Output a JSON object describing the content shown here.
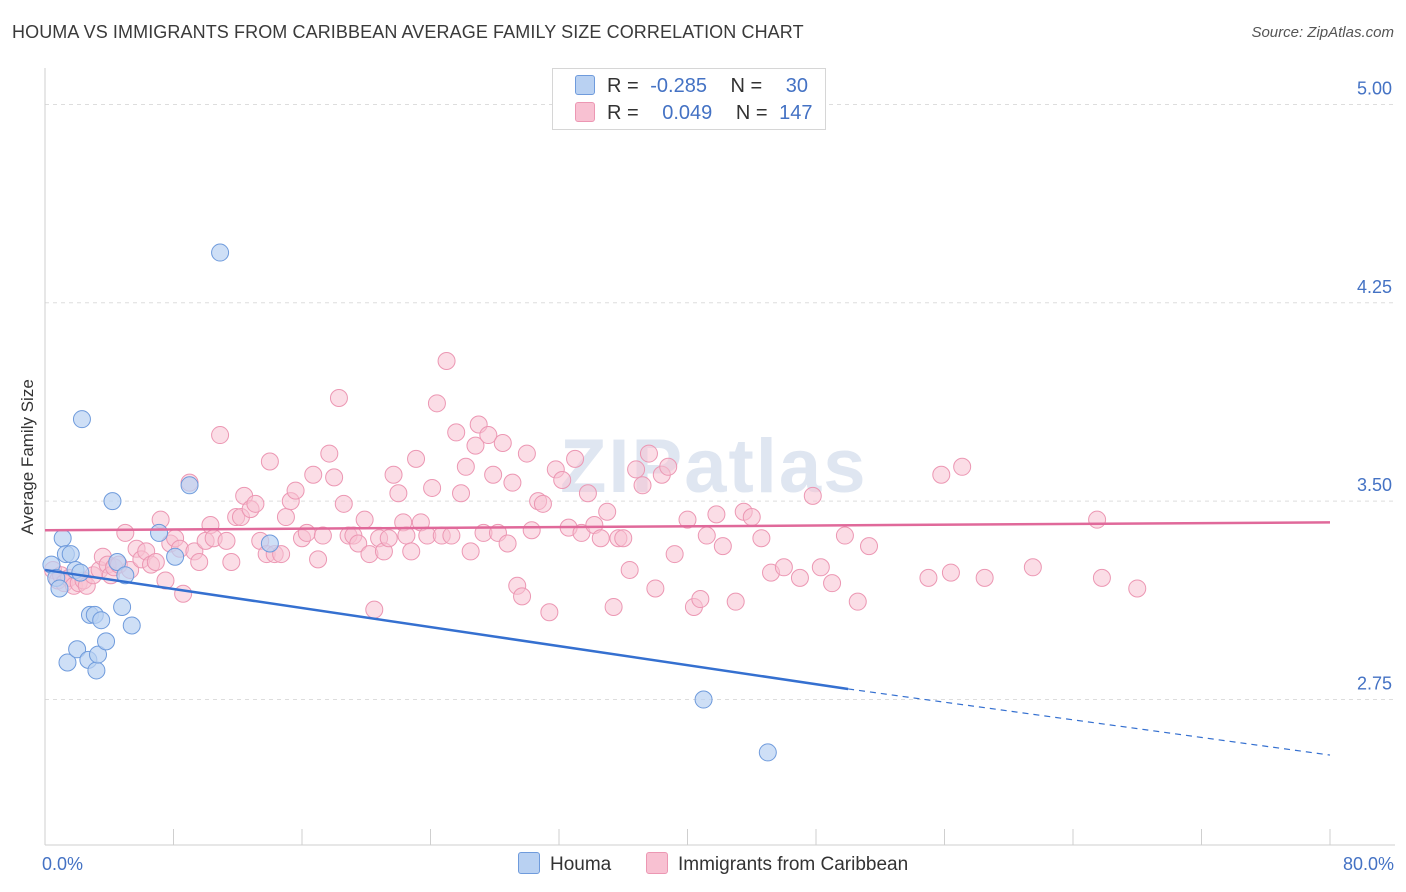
{
  "header": {
    "title": "HOUMA VS IMMIGRANTS FROM CARIBBEAN AVERAGE FAMILY SIZE CORRELATION CHART",
    "source": "Source: ZipAtlas.com"
  },
  "legend_top": {
    "houma": {
      "r_label": "R =",
      "r_value": "-0.285",
      "n_label": "N =",
      "n_value": "30"
    },
    "caribbean": {
      "r_label": "R =",
      "r_value": "0.049",
      "n_label": "N =",
      "n_value": "147"
    }
  },
  "legend_bottom": {
    "houma": "Houma",
    "caribbean": "Immigrants from Caribbean"
  },
  "watermark": "ZIPatlas",
  "colors": {
    "houma_fill": "#b9d1f2",
    "houma_stroke": "#6f9bdc",
    "houma_line": "#3570d0",
    "carib_fill": "#f8c1d2",
    "carib_stroke": "#ec97b3",
    "carib_line": "#e0699a",
    "axis_text": "#4472c4",
    "grid": "#dddddd"
  },
  "chart_data": {
    "type": "scatter",
    "ylabel": "Average Family Size",
    "xlim": [
      0,
      80
    ],
    "ylim": [
      2.2,
      5.1
    ],
    "x_tick_labels": [
      "0.0%",
      "80.0%"
    ],
    "y_ticks": [
      5.0,
      4.25,
      3.5,
      2.75
    ],
    "y_tick_labels": [
      "5.00",
      "4.25",
      "3.50",
      "2.75"
    ],
    "grid": "horizontal dashed",
    "series": [
      {
        "name": "Houma",
        "trend": {
          "x0": 0,
          "y0": 3.24,
          "x1": 50,
          "y1": 2.79,
          "dashed_to_x": 80,
          "dashed_to_y": 2.54
        },
        "points": [
          [
            0.4,
            3.26
          ],
          [
            0.7,
            3.21
          ],
          [
            0.9,
            3.17
          ],
          [
            1.1,
            3.36
          ],
          [
            1.3,
            3.3
          ],
          [
            1.6,
            3.3
          ],
          [
            1.9,
            3.24
          ],
          [
            1.4,
            2.89
          ],
          [
            2.0,
            2.94
          ],
          [
            2.2,
            3.23
          ],
          [
            2.3,
            3.81
          ],
          [
            2.7,
            2.9
          ],
          [
            2.8,
            3.07
          ],
          [
            3.1,
            3.07
          ],
          [
            3.2,
            2.86
          ],
          [
            3.3,
            2.92
          ],
          [
            3.5,
            3.05
          ],
          [
            3.8,
            2.97
          ],
          [
            4.2,
            3.5
          ],
          [
            4.5,
            3.27
          ],
          [
            4.8,
            3.1
          ],
          [
            5.0,
            3.22
          ],
          [
            5.4,
            3.03
          ],
          [
            7.1,
            3.38
          ],
          [
            8.1,
            3.29
          ],
          [
            9.0,
            3.56
          ],
          [
            10.9,
            4.44
          ],
          [
            14.0,
            3.34
          ],
          [
            41.0,
            2.75
          ],
          [
            45.0,
            2.55
          ]
        ]
      },
      {
        "name": "Immigrants from Caribbean",
        "trend": {
          "x0": 0,
          "y0": 3.39,
          "x1": 80,
          "y1": 3.42
        },
        "points": [
          [
            0.5,
            3.24
          ],
          [
            0.8,
            3.2
          ],
          [
            1.0,
            3.22
          ],
          [
            1.2,
            3.19
          ],
          [
            1.5,
            3.21
          ],
          [
            1.8,
            3.18
          ],
          [
            2.1,
            3.19
          ],
          [
            2.4,
            3.2
          ],
          [
            2.6,
            3.18
          ],
          [
            3.0,
            3.22
          ],
          [
            3.4,
            3.24
          ],
          [
            3.6,
            3.29
          ],
          [
            3.9,
            3.26
          ],
          [
            4.1,
            3.22
          ],
          [
            4.3,
            3.25
          ],
          [
            4.6,
            3.26
          ],
          [
            5.0,
            3.38
          ],
          [
            5.3,
            3.24
          ],
          [
            5.7,
            3.32
          ],
          [
            6.0,
            3.28
          ],
          [
            6.3,
            3.31
          ],
          [
            6.6,
            3.26
          ],
          [
            6.9,
            3.27
          ],
          [
            7.2,
            3.43
          ],
          [
            7.5,
            3.2
          ],
          [
            7.8,
            3.34
          ],
          [
            8.1,
            3.36
          ],
          [
            8.4,
            3.32
          ],
          [
            8.6,
            3.15
          ],
          [
            9.0,
            3.57
          ],
          [
            9.3,
            3.31
          ],
          [
            9.6,
            3.27
          ],
          [
            10.0,
            3.35
          ],
          [
            10.3,
            3.41
          ],
          [
            10.5,
            3.36
          ],
          [
            10.9,
            3.75
          ],
          [
            11.3,
            3.35
          ],
          [
            11.6,
            3.27
          ],
          [
            11.9,
            3.44
          ],
          [
            12.2,
            3.44
          ],
          [
            12.4,
            3.52
          ],
          [
            12.8,
            3.47
          ],
          [
            13.1,
            3.49
          ],
          [
            13.4,
            3.35
          ],
          [
            13.8,
            3.3
          ],
          [
            14.0,
            3.65
          ],
          [
            14.3,
            3.3
          ],
          [
            14.7,
            3.3
          ],
          [
            15.0,
            3.44
          ],
          [
            15.3,
            3.5
          ],
          [
            15.6,
            3.54
          ],
          [
            16.0,
            3.36
          ],
          [
            16.3,
            3.38
          ],
          [
            16.7,
            3.6
          ],
          [
            17.0,
            3.28
          ],
          [
            17.3,
            3.37
          ],
          [
            17.7,
            3.68
          ],
          [
            18.0,
            3.59
          ],
          [
            18.3,
            3.89
          ],
          [
            18.6,
            3.49
          ],
          [
            18.9,
            3.37
          ],
          [
            19.2,
            3.37
          ],
          [
            19.5,
            3.34
          ],
          [
            19.9,
            3.43
          ],
          [
            20.2,
            3.3
          ],
          [
            20.5,
            3.09
          ],
          [
            20.8,
            3.36
          ],
          [
            21.1,
            3.31
          ],
          [
            21.4,
            3.36
          ],
          [
            21.7,
            3.6
          ],
          [
            22.0,
            3.53
          ],
          [
            22.3,
            3.42
          ],
          [
            22.5,
            3.37
          ],
          [
            22.8,
            3.31
          ],
          [
            23.1,
            3.66
          ],
          [
            23.4,
            3.42
          ],
          [
            23.8,
            3.37
          ],
          [
            24.1,
            3.55
          ],
          [
            24.4,
            3.87
          ],
          [
            24.7,
            3.37
          ],
          [
            25.0,
            4.03
          ],
          [
            25.3,
            3.37
          ],
          [
            25.6,
            3.76
          ],
          [
            25.9,
            3.53
          ],
          [
            26.2,
            3.63
          ],
          [
            26.5,
            3.31
          ],
          [
            26.8,
            3.71
          ],
          [
            27.0,
            3.79
          ],
          [
            27.3,
            3.38
          ],
          [
            27.6,
            3.75
          ],
          [
            27.9,
            3.6
          ],
          [
            28.2,
            3.38
          ],
          [
            28.5,
            3.72
          ],
          [
            28.8,
            3.34
          ],
          [
            29.1,
            3.57
          ],
          [
            29.4,
            3.18
          ],
          [
            29.7,
            3.14
          ],
          [
            30.0,
            3.68
          ],
          [
            30.3,
            3.39
          ],
          [
            30.7,
            3.5
          ],
          [
            31.0,
            3.49
          ],
          [
            31.4,
            3.08
          ],
          [
            31.8,
            3.62
          ],
          [
            32.2,
            3.58
          ],
          [
            32.6,
            3.4
          ],
          [
            33.0,
            3.66
          ],
          [
            33.4,
            3.38
          ],
          [
            33.8,
            3.53
          ],
          [
            34.2,
            3.41
          ],
          [
            34.6,
            3.36
          ],
          [
            35.0,
            3.46
          ],
          [
            35.4,
            3.1
          ],
          [
            35.7,
            3.36
          ],
          [
            36.0,
            3.36
          ],
          [
            36.4,
            3.24
          ],
          [
            36.8,
            3.62
          ],
          [
            37.2,
            3.56
          ],
          [
            37.6,
            3.68
          ],
          [
            38.0,
            3.17
          ],
          [
            38.4,
            3.6
          ],
          [
            38.8,
            3.63
          ],
          [
            39.2,
            3.3
          ],
          [
            40.0,
            3.43
          ],
          [
            40.4,
            3.1
          ],
          [
            40.8,
            3.13
          ],
          [
            41.2,
            3.37
          ],
          [
            41.8,
            3.45
          ],
          [
            42.2,
            3.33
          ],
          [
            43.0,
            3.12
          ],
          [
            43.5,
            3.46
          ],
          [
            44.0,
            3.44
          ],
          [
            44.6,
            3.36
          ],
          [
            45.2,
            3.23
          ],
          [
            46.0,
            3.25
          ],
          [
            47.0,
            3.21
          ],
          [
            47.8,
            3.52
          ],
          [
            48.3,
            3.25
          ],
          [
            49.0,
            3.19
          ],
          [
            49.8,
            3.37
          ],
          [
            50.6,
            3.12
          ],
          [
            51.3,
            3.33
          ],
          [
            55.0,
            3.21
          ],
          [
            55.8,
            3.6
          ],
          [
            56.4,
            3.23
          ],
          [
            57.1,
            3.63
          ],
          [
            58.5,
            3.21
          ],
          [
            61.5,
            3.25
          ],
          [
            65.5,
            3.43
          ],
          [
            65.8,
            3.21
          ],
          [
            68.0,
            3.17
          ]
        ]
      }
    ]
  }
}
